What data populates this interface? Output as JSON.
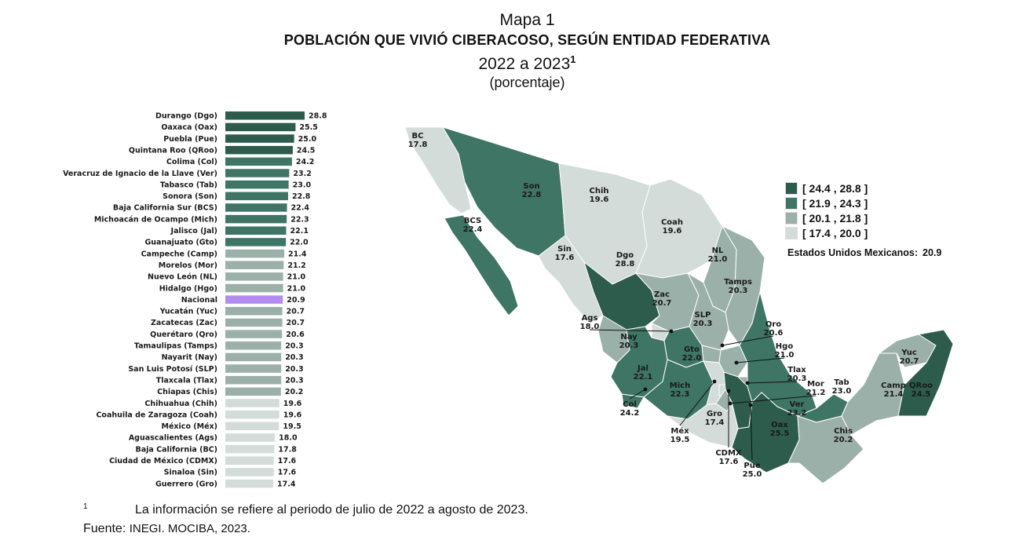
{
  "header": {
    "map_number": "Mapa 1",
    "title": "POBLACIÓN QUE VIVIÓ CIBERACOSO, SEGÚN ENTIDAD FEDERATIVA",
    "period": "2022 a 2023",
    "period_note_marker": "1",
    "unit": "(porcentaje)"
  },
  "chart_data": [
    {
      "type": "bar",
      "orientation": "horizontal",
      "categories": [
        "Durango (Dgo)",
        "Oaxaca (Oax)",
        "Puebla (Pue)",
        "Quintana Roo (QRoo)",
        "Colima (Col)",
        "Veracruz de Ignacio de la Llave (Ver)",
        "Tabasco (Tab)",
        "Sonora (Son)",
        "Baja California Sur (BCS)",
        "Michoacán de Ocampo (Mich)",
        "Jalisco (Jal)",
        "Guanajuato (Gto)",
        "Campeche (Camp)",
        "Morelos (Mor)",
        "Nuevo León (NL)",
        "Hidalgo (Hgo)",
        "Nacional",
        "Yucatán (Yuc)",
        "Zacatecas (Zac)",
        "Querétaro (Qro)",
        "Tamaulipas (Tamps)",
        "Nayarit (Nay)",
        "San Luis Potosí (SLP)",
        "Tlaxcala (Tlax)",
        "Chiapas (Chis)",
        "Chihuahua (Chih)",
        "Coahuila de Zaragoza (Coah)",
        "México (Méx)",
        "Aguascalientes (Ags)",
        "Baja California (BC)",
        "Ciudad de México (CDMX)",
        "Sinaloa (Sin)",
        "Guerrero (Gro)"
      ],
      "values": [
        28.8,
        25.5,
        25.0,
        24.5,
        24.2,
        23.2,
        23.0,
        22.8,
        22.4,
        22.3,
        22.1,
        22.0,
        21.4,
        21.2,
        21.0,
        21.0,
        20.9,
        20.7,
        20.7,
        20.6,
        20.3,
        20.3,
        20.3,
        20.3,
        20.2,
        19.6,
        19.6,
        19.5,
        18.0,
        17.8,
        17.6,
        17.6,
        17.4
      ],
      "value_labels": [
        "28.8",
        "25.5",
        "25.0",
        "24.5",
        "24.2",
        "23.2",
        "23.0",
        "22.8",
        "22.4",
        "22.3",
        "22.1",
        "22.0",
        "21.4",
        "21.2",
        "21.0",
        "21.0",
        "20.9",
        "20.7",
        "20.7",
        "20.6",
        "20.3",
        "20.3",
        "20.3",
        "20.3",
        "20.2",
        "19.6",
        "19.6",
        "19.5",
        "18.0",
        "17.8",
        "17.6",
        "17.6",
        "17.4"
      ],
      "highlight": "Nacional",
      "xlim": [
        0,
        28.8
      ]
    },
    {
      "type": "choropleth",
      "regions": [
        {
          "abbr": "BC",
          "value": "17.8"
        },
        {
          "abbr": "Son",
          "value": "22.8"
        },
        {
          "abbr": "Chih",
          "value": "19.6"
        },
        {
          "abbr": "BCS",
          "value": "22.4"
        },
        {
          "abbr": "Coah",
          "value": "19.6"
        },
        {
          "abbr": "Sin",
          "value": "17.6"
        },
        {
          "abbr": "NL",
          "value": "21.0"
        },
        {
          "abbr": "Dgo",
          "value": "28.8"
        },
        {
          "abbr": "Tamps",
          "value": "20.3"
        },
        {
          "abbr": "Zac",
          "value": "20.7"
        },
        {
          "abbr": "SLP",
          "value": "20.3"
        },
        {
          "abbr": "Ags",
          "value": "18.0"
        },
        {
          "abbr": "Nay",
          "value": "20.3"
        },
        {
          "abbr": "Qro",
          "value": "20.6"
        },
        {
          "abbr": "Gto",
          "value": "22.0"
        },
        {
          "abbr": "Hgo",
          "value": "21.0"
        },
        {
          "abbr": "Jal",
          "value": "22.1"
        },
        {
          "abbr": "Tlax",
          "value": "20.3"
        },
        {
          "abbr": "Yuc",
          "value": "20.7"
        },
        {
          "abbr": "Tab",
          "value": "23.0"
        },
        {
          "abbr": "QRoo",
          "value": "24.5"
        },
        {
          "abbr": "Mich",
          "value": "22.3"
        },
        {
          "abbr": "Mor",
          "value": "21.2"
        },
        {
          "abbr": "Camp",
          "value": "21.4"
        },
        {
          "abbr": "Col",
          "value": "24.2"
        },
        {
          "abbr": "Ver",
          "value": "23.2"
        },
        {
          "abbr": "Gro",
          "value": "17.4"
        },
        {
          "abbr": "Oax",
          "value": "25.5"
        },
        {
          "abbr": "Chis",
          "value": "20.2"
        },
        {
          "abbr": "Méx",
          "value": "19.5"
        },
        {
          "abbr": "CDMX",
          "value": "17.6"
        },
        {
          "abbr": "Pue",
          "value": "25.0"
        }
      ]
    }
  ],
  "legend": {
    "items": [
      {
        "label": "[ 24.4 , 28.8 ]",
        "color": "#2d5c4c"
      },
      {
        "label": "[ 21.9 , 24.3 ]",
        "color": "#3f7564"
      },
      {
        "label": "[ 20.1 , 21.8 ]",
        "color": "#9bb0a8"
      },
      {
        "label": "[ 17.4 , 20.0 ]",
        "color": "#d3dcd8"
      }
    ],
    "national_label": "Estados Unidos Mexicanos:",
    "national_value": "20.9"
  },
  "colors": {
    "national_bar": "#b38cf0",
    "map_stroke": "#ffffff"
  },
  "footer": {
    "footnote_marker": "1",
    "footnote_text": "La información se refiere al periodo de julio de 2022 a agosto de 2023.",
    "source_label": "Fuente: ",
    "source_text": "INEGI. MOCIBA, 2023."
  }
}
